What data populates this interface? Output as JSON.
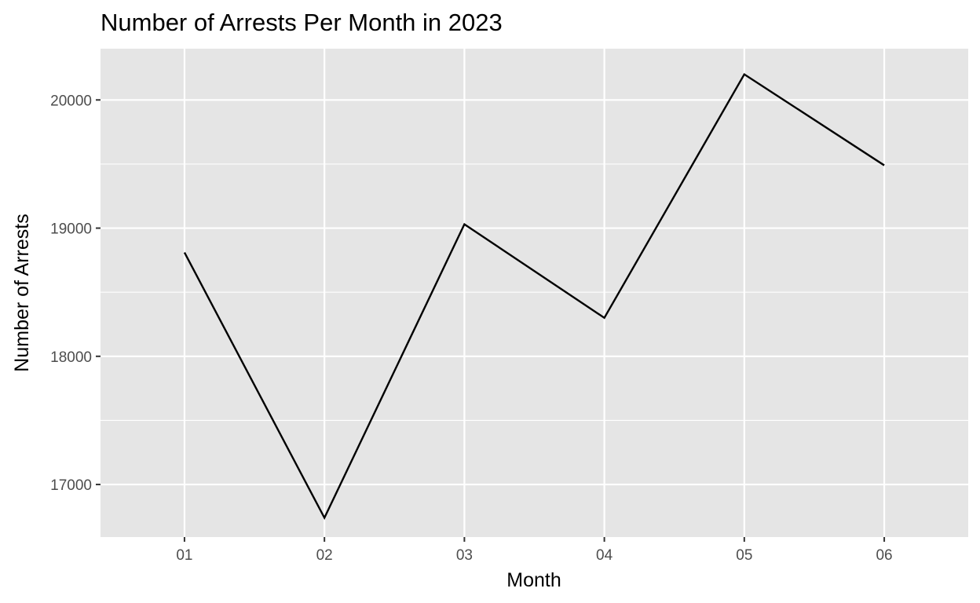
{
  "chart_data": {
    "type": "line",
    "title": "Number of Arrests Per Month in 2023",
    "xlabel": "Month",
    "ylabel": "Number of Arrests",
    "categories": [
      "01",
      "02",
      "03",
      "04",
      "05",
      "06"
    ],
    "series": [
      {
        "values": [
          18810,
          16740,
          19030,
          18300,
          20200,
          19490
        ]
      }
    ],
    "ylim": [
      16590,
      20400
    ],
    "y_major_ticks": [
      17000,
      18000,
      19000,
      20000
    ],
    "y_minor_ticks": [
      16500,
      17500,
      18500,
      19500
    ],
    "grid": true,
    "legend": "none",
    "colors": {
      "panel_background": "#e5e5e5",
      "grid": "#ffffff",
      "line": "#000000",
      "tick_text": "#4d4d4d"
    }
  }
}
